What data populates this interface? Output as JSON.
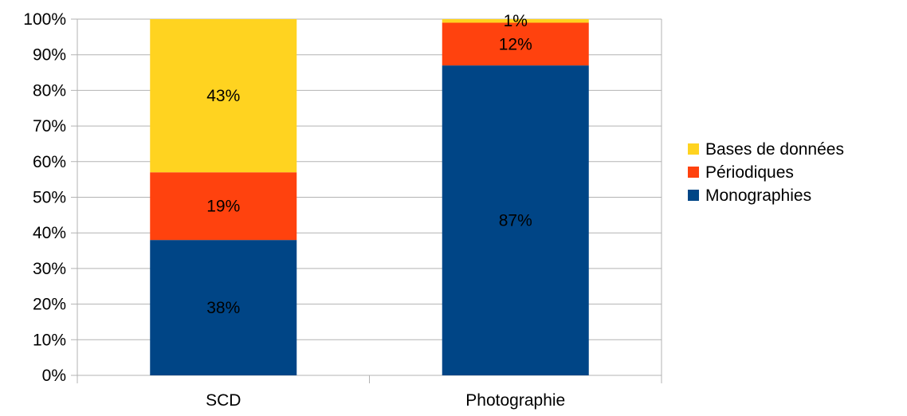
{
  "chart_data": {
    "type": "bar",
    "stacked": true,
    "categories": [
      "SCD",
      "Photographie"
    ],
    "series": [
      {
        "name": "Monographies",
        "values": [
          38,
          87
        ],
        "labels": [
          "38%",
          "87%"
        ],
        "color": "#004586"
      },
      {
        "name": "Périodiques",
        "values": [
          19,
          12
        ],
        "labels": [
          "19%",
          "12%"
        ],
        "color": "#FF420E"
      },
      {
        "name": "Bases de données",
        "values": [
          43,
          1
        ],
        "labels": [
          "43%",
          "1%"
        ],
        "color": "#FFD320"
      }
    ],
    "ylim": [
      0,
      100
    ],
    "yticks": [
      "0%",
      "10%",
      "20%",
      "30%",
      "40%",
      "50%",
      "60%",
      "70%",
      "80%",
      "90%",
      "100%"
    ],
    "legend_order": [
      "Bases de données",
      "Périodiques",
      "Monographies"
    ],
    "legend_position": "right",
    "grid": true,
    "title": "",
    "xlabel": "",
    "ylabel": ""
  }
}
